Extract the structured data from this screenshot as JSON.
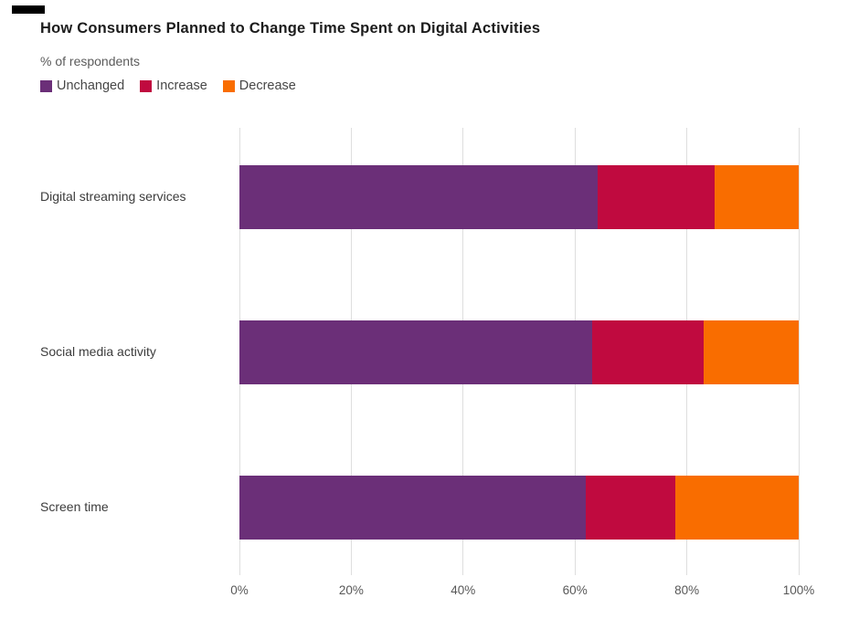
{
  "corner_mark": {
    "color": "#000000"
  },
  "chart_data": {
    "type": "bar",
    "orientation": "horizontal-stacked",
    "title": "How Consumers Planned to Change Time Spent on Digital Activities",
    "subtitle": "% of respondents",
    "categories": [
      "Digital streaming services",
      "Social media activity",
      "Screen time"
    ],
    "series": [
      {
        "name": "Unchanged",
        "color": "#6B2F78",
        "values": [
          64,
          63,
          62
        ]
      },
      {
        "name": "Increase",
        "color": "#C00A3F",
        "values": [
          21,
          20,
          16
        ]
      },
      {
        "name": "Decrease",
        "color": "#F96D00",
        "values": [
          15,
          17,
          22
        ]
      }
    ],
    "x_ticks": [
      "0%",
      "20%",
      "40%",
      "60%",
      "80%",
      "100%"
    ],
    "xlim": [
      0,
      100
    ],
    "legend_position": "top-left",
    "grid": "vertical",
    "bar_total": 100
  }
}
